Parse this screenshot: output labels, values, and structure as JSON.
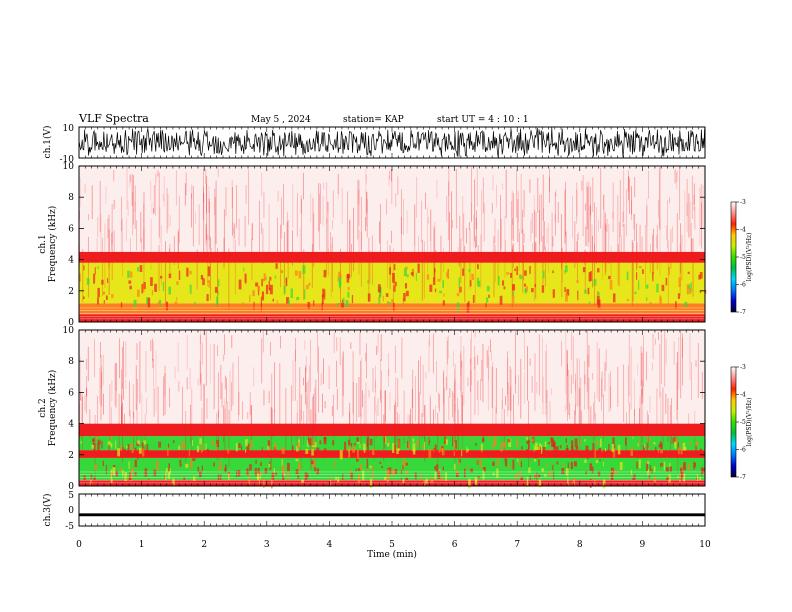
{
  "header": {
    "title": "VLF Spectra",
    "date": "May 5  , 2024",
    "station": "station= KAP",
    "start": "start  UT  =   4 : 10 : 1"
  },
  "colors": {
    "spec_bg": "#fdeeee",
    "spec_red": "#ee1c1c",
    "spec_orange": "#ff7f1e",
    "spec_yellow": "#e6e61a",
    "spec_green": "#36d83a",
    "waveform": "#000000"
  },
  "colorbar": {
    "stops": [
      "#000033",
      "#0000cc",
      "#0077ff",
      "#00d8ff",
      "#00c040",
      "#33e000",
      "#c8f000",
      "#ffcc00",
      "#ff2200",
      "#ff9090",
      "#ffffff"
    ]
  },
  "chart_data": {
    "type": "heatmap",
    "x_range_min": [
      0,
      10
    ],
    "xlabel": "Time  (min)",
    "x_ticks": [
      "0",
      "1",
      "2",
      "3",
      "4",
      "5",
      "6",
      "7",
      "8",
      "9",
      "10"
    ],
    "panels": [
      {
        "id": "ch1-waveform",
        "type": "line",
        "ylabel": "ch.1(V)",
        "ylim": [
          -10,
          10
        ],
        "y_ticks": [
          "10",
          "-10"
        ]
      },
      {
        "id": "ch1-spectrogram",
        "type": "heatmap",
        "ylabel_top": "ch.1",
        "ylabel": "Frequency  (kHz)",
        "ylim": [
          0,
          10
        ],
        "y_ticks": [
          "0",
          "2",
          "4",
          "6",
          "8",
          "10"
        ],
        "colorbar_label": "log(PSD)(V²/Hz)",
        "colorbar_ticks": [
          "-3",
          "-4",
          "-5",
          "-6",
          "-7"
        ],
        "colorbar_range": [
          -7,
          -3
        ],
        "bands_khz": [
          {
            "from": 0,
            "to": 0.5,
            "level": "red"
          },
          {
            "from": 0.5,
            "to": 1.2,
            "level": "orange"
          },
          {
            "from": 1.2,
            "to": 3.8,
            "level": "yellow"
          },
          {
            "from": 3.8,
            "to": 4.5,
            "level": "red"
          },
          {
            "from": 4.5,
            "to": 10,
            "level": "light-red"
          }
        ]
      },
      {
        "id": "ch2-spectrogram",
        "type": "heatmap",
        "ylabel_top": "ch.2",
        "ylabel": "Frequency  (kHz)",
        "ylim": [
          0,
          10
        ],
        "y_ticks": [
          "0",
          "2",
          "4",
          "6",
          "8",
          "10"
        ],
        "colorbar_label": "log(PSD)(V²/Hz)",
        "colorbar_ticks": [
          "-3",
          "-4",
          "-5",
          "-6",
          "-7"
        ],
        "colorbar_range": [
          -7,
          -3
        ],
        "bands_khz": [
          {
            "from": 0,
            "to": 0.4,
            "level": "red"
          },
          {
            "from": 0.4,
            "to": 1.8,
            "level": "green"
          },
          {
            "from": 1.8,
            "to": 2.3,
            "level": "red"
          },
          {
            "from": 2.3,
            "to": 3.2,
            "level": "green"
          },
          {
            "from": 3.2,
            "to": 4.0,
            "level": "red"
          },
          {
            "from": 4.0,
            "to": 10,
            "level": "light-red"
          }
        ]
      },
      {
        "id": "ch3-waveform",
        "type": "line",
        "ylabel": "ch.3(V)",
        "ylim": [
          -5,
          5
        ],
        "y_ticks": [
          "5",
          "0",
          "-5"
        ],
        "trace_level_v": -1.5
      }
    ]
  }
}
